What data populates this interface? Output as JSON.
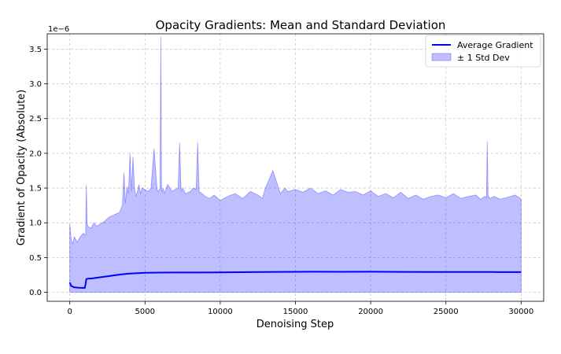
{
  "chart_data": {
    "type": "line",
    "title": "Opacity Gradients: Mean and Standard Deviation",
    "xlabel": "Denoising Step",
    "ylabel": "Gradient of Opacity (Absolute)",
    "y_scale_label": "1e−6",
    "xlim": [
      -1500,
      31500
    ],
    "ylim": [
      -0.13,
      3.72
    ],
    "x_ticks": [
      0,
      5000,
      10000,
      15000,
      20000,
      25000,
      30000
    ],
    "y_ticks": [
      0.0,
      0.5,
      1.0,
      1.5,
      2.0,
      2.5,
      3.0,
      3.5
    ],
    "x_tick_labels": [
      "0",
      "5000",
      "10000",
      "15000",
      "20000",
      "25000",
      "30000"
    ],
    "y_tick_labels": [
      "0.0",
      "0.5",
      "1.0",
      "1.5",
      "2.0",
      "2.5",
      "3.0",
      "3.5"
    ],
    "grid": true,
    "legend_position": "top-right",
    "series": [
      {
        "name": "Average Gradient",
        "kind": "line",
        "color": "#0000ff",
        "x": [
          0,
          100,
          300,
          600,
          1000,
          1050,
          1100,
          1200,
          1500,
          2000,
          2500,
          3000,
          3500,
          4000,
          4500,
          5000,
          6000,
          7000,
          8000,
          10000,
          12000,
          14000,
          16000,
          18000,
          20000,
          22000,
          24000,
          26000,
          28000,
          30000
        ],
        "values": [
          0.14,
          0.09,
          0.07,
          0.065,
          0.062,
          0.12,
          0.19,
          0.195,
          0.2,
          0.215,
          0.23,
          0.245,
          0.26,
          0.27,
          0.275,
          0.28,
          0.283,
          0.284,
          0.285,
          0.287,
          0.29,
          0.293,
          0.296,
          0.295,
          0.296,
          0.294,
          0.292,
          0.292,
          0.291,
          0.29
        ]
      },
      {
        "name": "± 1 Std Dev",
        "kind": "band",
        "color": "#0000ff",
        "fill_opacity": 0.25,
        "lower_constant": 0.0,
        "upper_x": [
          0,
          100,
          200,
          300,
          500,
          700,
          900,
          1050,
          1100,
          1150,
          1200,
          1400,
          1600,
          1800,
          2000,
          2300,
          2600,
          3000,
          3300,
          3500,
          3600,
          3700,
          3800,
          3900,
          4000,
          4100,
          4200,
          4300,
          4400,
          4500,
          4600,
          4700,
          4800,
          5000,
          5200,
          5400,
          5600,
          5800,
          5900,
          6000,
          6050,
          6100,
          6150,
          6200,
          6300,
          6500,
          6800,
          7000,
          7200,
          7300,
          7400,
          7500,
          7700,
          8000,
          8200,
          8400,
          8500,
          8600,
          8800,
          9000,
          9300,
          9600,
          10000,
          10500,
          11000,
          11500,
          12000,
          12500,
          12800,
          13000,
          13500,
          14000,
          14300,
          14500,
          15000,
          15500,
          16000,
          16500,
          17000,
          17500,
          18000,
          18500,
          19000,
          19500,
          20000,
          20500,
          21000,
          21500,
          22000,
          22500,
          23000,
          23500,
          24000,
          24500,
          25000,
          25500,
          26000,
          26500,
          27000,
          27300,
          27600,
          27700,
          27750,
          27800,
          27900,
          28200,
          28600,
          29000,
          29300,
          29600,
          29900,
          30000
        ],
        "upper_values": [
          0.98,
          0.75,
          0.7,
          0.8,
          0.72,
          0.8,
          0.85,
          0.82,
          1.55,
          1.0,
          0.95,
          0.92,
          1.0,
          0.95,
          0.98,
          1.02,
          1.08,
          1.12,
          1.15,
          1.25,
          1.72,
          1.28,
          1.52,
          1.42,
          2.0,
          1.45,
          1.95,
          1.5,
          1.38,
          1.45,
          1.55,
          1.42,
          1.5,
          1.48,
          1.45,
          1.5,
          2.07,
          1.48,
          1.45,
          1.5,
          3.68,
          1.48,
          1.45,
          1.5,
          1.42,
          1.55,
          1.45,
          1.48,
          1.5,
          2.15,
          1.45,
          1.5,
          1.42,
          1.45,
          1.5,
          1.48,
          2.16,
          1.45,
          1.42,
          1.38,
          1.35,
          1.4,
          1.32,
          1.38,
          1.42,
          1.35,
          1.45,
          1.4,
          1.35,
          1.5,
          1.75,
          1.42,
          1.5,
          1.45,
          1.48,
          1.44,
          1.5,
          1.42,
          1.46,
          1.4,
          1.48,
          1.44,
          1.45,
          1.4,
          1.46,
          1.38,
          1.42,
          1.36,
          1.44,
          1.35,
          1.4,
          1.34,
          1.38,
          1.4,
          1.36,
          1.42,
          1.35,
          1.38,
          1.4,
          1.34,
          1.38,
          1.36,
          2.17,
          1.4,
          1.35,
          1.38,
          1.34,
          1.36,
          1.38,
          1.4,
          1.36,
          1.34
        ]
      }
    ]
  }
}
